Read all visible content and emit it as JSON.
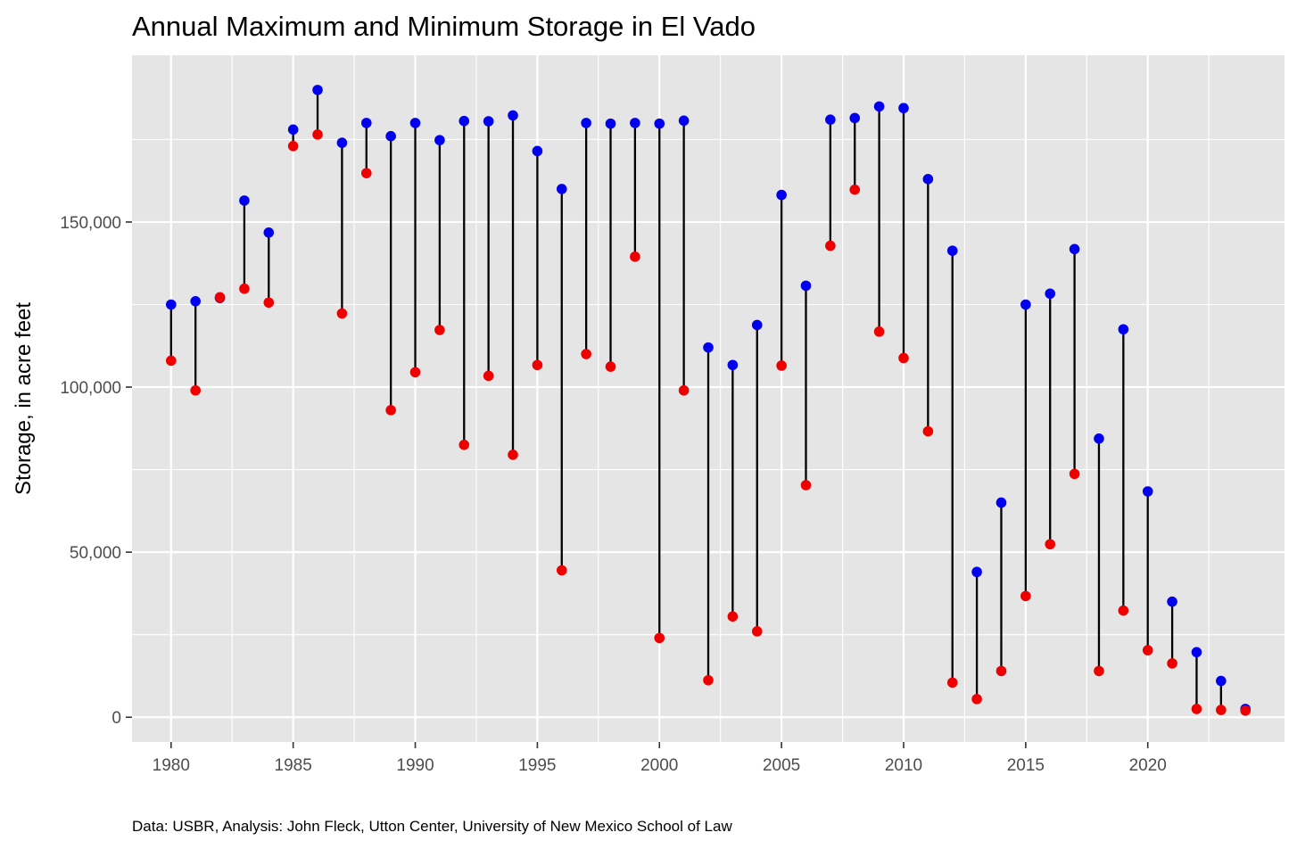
{
  "chart_data": {
    "type": "dumbbell",
    "title": "Annual Maximum and Minimum Storage in El Vado",
    "xlabel": "",
    "ylabel": "Storage, in acre feet",
    "caption": "Data: USBR, Analysis: John Fleck, Utton Center, University of New Mexico School of Law",
    "x_ticks": [
      1980,
      1985,
      1990,
      1995,
      2000,
      2005,
      2010,
      2015,
      2020
    ],
    "x_tick_labels": [
      "1980",
      "1985",
      "1990",
      "1995",
      "2000",
      "2005",
      "2010",
      "2015",
      "2020"
    ],
    "y_ticks": [
      0,
      50000,
      100000,
      150000
    ],
    "y_tick_labels": [
      "0",
      "50,000",
      "100,000",
      "150,000"
    ],
    "xlim": [
      1978.4,
      2025.6
    ],
    "ylim": [
      -7500,
      200500
    ],
    "grid": true,
    "legend": "none",
    "colors": {
      "panel": "#e5e5e5",
      "grid": "#ffffff",
      "max": "#0000ee",
      "min": "#ee0000",
      "segment": "#000000"
    },
    "series": [
      {
        "name": "max",
        "x": [
          1980,
          1981,
          1982,
          1983,
          1984,
          1985,
          1986,
          1987,
          1988,
          1989,
          1990,
          1991,
          1992,
          1993,
          1994,
          1995,
          1996,
          1997,
          1998,
          1999,
          2000,
          2001,
          2002,
          2003,
          2004,
          2005,
          2006,
          2007,
          2008,
          2009,
          2010,
          2011,
          2012,
          2013,
          2014,
          2015,
          2016,
          2017,
          2018,
          2019,
          2020,
          2021,
          2022,
          2023,
          2024
        ],
        "values": [
          125000,
          126000,
          127000,
          156500,
          146800,
          178000,
          190000,
          174000,
          180000,
          176000,
          180000,
          174800,
          180600,
          180500,
          182300,
          171500,
          160000,
          180000,
          179800,
          180000,
          179800,
          180700,
          112000,
          106700,
          118800,
          158200,
          130700,
          181000,
          181500,
          185000,
          184500,
          163000,
          141300,
          44000,
          65000,
          125000,
          128300,
          141800,
          84400,
          117500,
          68400,
          35000,
          19700,
          11000,
          2500
        ]
      },
      {
        "name": "min",
        "x": [
          1980,
          1981,
          1982,
          1983,
          1984,
          1985,
          1986,
          1987,
          1988,
          1989,
          1990,
          1991,
          1992,
          1993,
          1994,
          1995,
          1996,
          1997,
          1998,
          1999,
          2000,
          2001,
          2002,
          2003,
          2004,
          2005,
          2006,
          2007,
          2008,
          2009,
          2010,
          2011,
          2012,
          2013,
          2014,
          2015,
          2016,
          2017,
          2018,
          2019,
          2020,
          2021,
          2022,
          2023,
          2024
        ],
        "values": [
          108000,
          99000,
          127200,
          129800,
          125600,
          173000,
          176500,
          122300,
          164800,
          93000,
          104500,
          117300,
          82500,
          103400,
          79500,
          106700,
          44500,
          110000,
          106200,
          139500,
          24000,
          99000,
          11200,
          30500,
          26000,
          106500,
          70300,
          142800,
          159800,
          116800,
          108800,
          86600,
          10500,
          5500,
          14000,
          36700,
          52400,
          73700,
          14000,
          32300,
          20300,
          16300,
          2500,
          2200,
          2000
        ]
      }
    ]
  }
}
